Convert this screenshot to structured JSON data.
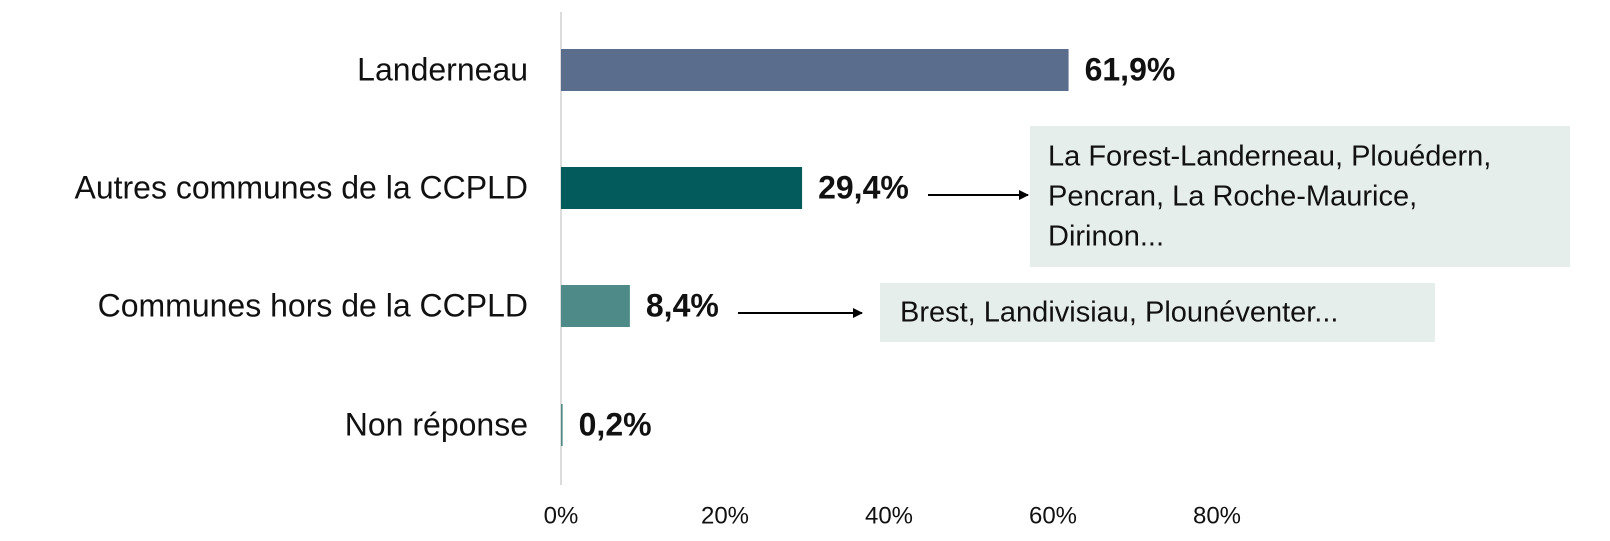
{
  "chart_data": {
    "type": "hbar",
    "categories": [
      "Landerneau",
      "Autres communes de la CCPLD",
      "Communes hors de la CCPLD",
      "Non réponse"
    ],
    "values": [
      61.9,
      29.4,
      8.4,
      0.2
    ],
    "value_labels": [
      "61,9%",
      "29,4%",
      "8,4%",
      "0,2%"
    ],
    "colors": [
      "#5b6d8c",
      "#035b5b",
      "#4e8a87",
      "#4e8a87"
    ],
    "xlim": [
      0,
      100
    ],
    "xticks": [
      {
        "value": 0,
        "label": "0%"
      },
      {
        "value": 20,
        "label": "20%"
      },
      {
        "value": 40,
        "label": "40%"
      },
      {
        "value": 60,
        "label": "60%"
      },
      {
        "value": 80,
        "label": "80%"
      }
    ],
    "annotations": [
      {
        "lines": [
          "La Forest-Landerneau, Plouédern,",
          "Pencran, La Roche-Maurice,",
          "Dirinon..."
        ]
      },
      {
        "lines": [
          "Brest, Landivisiau, Plounéventer..."
        ]
      }
    ]
  }
}
